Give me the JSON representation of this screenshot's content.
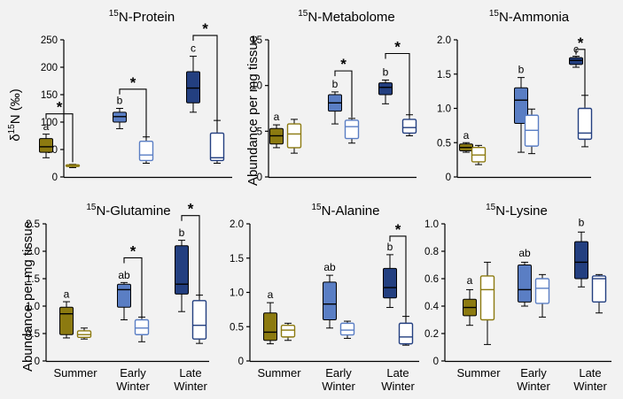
{
  "figure": {
    "ylabel_shared": "Abundance per mg tissue",
    "ylabel_protein_sup": "15",
    "ylabel_protein_text": "δ N (‰)",
    "xcategories": [
      [
        "Summer"
      ],
      [
        "Early",
        "Winter"
      ],
      [
        "Late",
        "Winter"
      ]
    ],
    "colors": {
      "summer": "#8c7a10",
      "early": "#5a7ec4",
      "late": "#233f80"
    }
  },
  "chart_data": [
    {
      "id": "protein",
      "type": "box",
      "title_sup": "15",
      "title": "N-Protein",
      "ylabel": "δ15N (‰)",
      "ylim": [
        0,
        250
      ],
      "ticks": [
        0,
        50,
        100,
        150,
        200,
        250
      ],
      "tick_labels": [
        "0",
        "50",
        "100",
        "150",
        "200",
        "250"
      ],
      "categories": [
        "Summer",
        "Early Winter",
        "Late Winter"
      ],
      "show_xlabels": false,
      "boxes": [
        {
          "group": 0,
          "fill": true,
          "min": 35,
          "q1": 45,
          "median": 55,
          "q3": 70,
          "max": 78
        },
        {
          "group": 0,
          "fill": false,
          "min": 17,
          "q1": 19,
          "median": 20,
          "q3": 22,
          "max": 23
        },
        {
          "group": 1,
          "fill": true,
          "min": 88,
          "q1": 100,
          "median": 110,
          "q3": 118,
          "max": 125
        },
        {
          "group": 1,
          "fill": false,
          "min": 25,
          "q1": 30,
          "median": 40,
          "q3": 65,
          "max": 73
        },
        {
          "group": 2,
          "fill": true,
          "min": 118,
          "q1": 135,
          "median": 162,
          "q3": 192,
          "max": 220
        },
        {
          "group": 2,
          "fill": false,
          "min": 25,
          "q1": 30,
          "median": 35,
          "q3": 80,
          "max": 103
        }
      ],
      "letters": [
        "a",
        "b",
        "c"
      ],
      "letter_values": [
        82,
        130,
        225
      ],
      "stars": [
        {
          "group": 0,
          "y": 115,
          "text": "*"
        },
        {
          "group": 1,
          "y": 160,
          "text": "*"
        },
        {
          "group": 2,
          "y": 258,
          "text": "*"
        }
      ]
    },
    {
      "id": "metabolome",
      "type": "box",
      "title_sup": "15",
      "title": "N-Metabolome",
      "ylim": [
        0,
        15
      ],
      "ticks": [
        0,
        5,
        10,
        15
      ],
      "tick_labels": [
        "0",
        "5",
        "10",
        "15"
      ],
      "categories": [
        "Summer",
        "Early Winter",
        "Late Winter"
      ],
      "show_xlabels": false,
      "boxes": [
        {
          "group": 0,
          "fill": true,
          "min": 3.2,
          "q1": 3.6,
          "median": 4.5,
          "q3": 5.3,
          "max": 5.7
        },
        {
          "group": 0,
          "fill": false,
          "min": 2.6,
          "q1": 3.2,
          "median": 4.7,
          "q3": 5.8,
          "max": 6.3
        },
        {
          "group": 1,
          "fill": true,
          "min": 5.8,
          "q1": 7.2,
          "median": 8.1,
          "q3": 9.0,
          "max": 9.3
        },
        {
          "group": 1,
          "fill": false,
          "min": 3.7,
          "q1": 4.2,
          "median": 5.5,
          "q3": 6.2,
          "max": 6.4
        },
        {
          "group": 2,
          "fill": true,
          "min": 8.0,
          "q1": 9.0,
          "median": 9.8,
          "q3": 10.3,
          "max": 10.6
        },
        {
          "group": 2,
          "fill": false,
          "min": 4.5,
          "q1": 4.8,
          "median": 5.4,
          "q3": 6.3,
          "max": 6.8
        }
      ],
      "letters": [
        "a",
        "b",
        "b"
      ],
      "letter_values": [
        6.0,
        9.6,
        10.9
      ],
      "stars": [
        {
          "group": 1,
          "y": 11.6,
          "text": "*"
        },
        {
          "group": 2,
          "y": 13.5,
          "text": "*"
        }
      ]
    },
    {
      "id": "ammonia",
      "type": "box",
      "title_sup": "15",
      "title": "N-Ammonia",
      "ylim": [
        0,
        2.0
      ],
      "ticks": [
        0,
        0.5,
        1.0,
        1.5,
        2.0
      ],
      "tick_labels": [
        "0",
        "0.5",
        "1.0",
        "1.5",
        "2.0"
      ],
      "categories": [
        "Summer",
        "Early Winter",
        "Late Winter"
      ],
      "show_xlabels": false,
      "boxes": [
        {
          "group": 0,
          "fill": true,
          "min": 0.36,
          "q1": 0.38,
          "median": 0.43,
          "q3": 0.48,
          "max": 0.5
        },
        {
          "group": 0,
          "fill": false,
          "min": 0.18,
          "q1": 0.22,
          "median": 0.32,
          "q3": 0.43,
          "max": 0.46
        },
        {
          "group": 1,
          "fill": true,
          "min": 0.36,
          "q1": 0.78,
          "median": 1.12,
          "q3": 1.3,
          "max": 1.45
        },
        {
          "group": 1,
          "fill": false,
          "min": 0.34,
          "q1": 0.45,
          "median": 0.68,
          "q3": 0.9,
          "max": 0.99
        },
        {
          "group": 2,
          "fill": true,
          "min": 1.6,
          "q1": 1.64,
          "median": 1.7,
          "q3": 1.74,
          "max": 1.76
        },
        {
          "group": 2,
          "fill": false,
          "min": 0.44,
          "q1": 0.55,
          "median": 0.64,
          "q3": 1.0,
          "max": 1.19
        }
      ],
      "letters": [
        "a",
        "b",
        "c"
      ],
      "letter_values": [
        0.53,
        1.49,
        1.79
      ],
      "stars": [
        {
          "group": 2,
          "y": 1.86,
          "text": "*"
        }
      ]
    },
    {
      "id": "glutamine",
      "type": "box",
      "title_sup": "15",
      "title": "N-Glutamine",
      "ylim": [
        0,
        2.5
      ],
      "ticks": [
        0,
        0.5,
        1.0,
        1.5,
        2.0,
        2.5
      ],
      "tick_labels": [
        "0",
        "0.5",
        "1.0",
        "1.5",
        "2.0",
        "2.5"
      ],
      "categories": [
        "Summer",
        "Early Winter",
        "Late Winter"
      ],
      "show_xlabels": true,
      "boxes": [
        {
          "group": 0,
          "fill": true,
          "min": 0.42,
          "q1": 0.48,
          "median": 0.86,
          "q3": 0.98,
          "max": 1.08
        },
        {
          "group": 0,
          "fill": false,
          "min": 0.4,
          "q1": 0.43,
          "median": 0.48,
          "q3": 0.55,
          "max": 0.6
        },
        {
          "group": 1,
          "fill": true,
          "min": 0.75,
          "q1": 0.98,
          "median": 1.3,
          "q3": 1.4,
          "max": 1.43
        },
        {
          "group": 1,
          "fill": false,
          "min": 0.35,
          "q1": 0.48,
          "median": 0.6,
          "q3": 0.75,
          "max": 0.8
        },
        {
          "group": 2,
          "fill": true,
          "min": 0.9,
          "q1": 1.22,
          "median": 1.4,
          "q3": 2.1,
          "max": 2.2
        },
        {
          "group": 2,
          "fill": false,
          "min": 0.32,
          "q1": 0.4,
          "median": 0.65,
          "q3": 1.1,
          "max": 1.2
        }
      ],
      "letters": [
        "a",
        "ab",
        "b"
      ],
      "letter_values": [
        1.12,
        1.47,
        2.24
      ],
      "stars": [
        {
          "group": 1,
          "y": 1.88,
          "text": "*"
        },
        {
          "group": 2,
          "y": 2.65,
          "text": "*"
        }
      ]
    },
    {
      "id": "alanine",
      "type": "box",
      "title_sup": "15",
      "title": "N-Alanine",
      "ylim": [
        0,
        2.0
      ],
      "ticks": [
        0,
        0.5,
        1.0,
        1.5,
        2.0
      ],
      "tick_labels": [
        "0",
        "0.5",
        "1.0",
        "1.5",
        "2.0"
      ],
      "categories": [
        "Summer",
        "Early Winter",
        "Late Winter"
      ],
      "show_xlabels": true,
      "boxes": [
        {
          "group": 0,
          "fill": true,
          "min": 0.25,
          "q1": 0.3,
          "median": 0.42,
          "q3": 0.7,
          "max": 0.85
        },
        {
          "group": 0,
          "fill": false,
          "min": 0.3,
          "q1": 0.35,
          "median": 0.45,
          "q3": 0.52,
          "max": 0.55
        },
        {
          "group": 1,
          "fill": true,
          "min": 0.48,
          "q1": 0.6,
          "median": 0.83,
          "q3": 1.15,
          "max": 1.25
        },
        {
          "group": 1,
          "fill": false,
          "min": 0.33,
          "q1": 0.38,
          "median": 0.45,
          "q3": 0.55,
          "max": 0.58
        },
        {
          "group": 2,
          "fill": true,
          "min": 0.78,
          "q1": 0.92,
          "median": 1.07,
          "q3": 1.35,
          "max": 1.55
        },
        {
          "group": 2,
          "fill": false,
          "min": 0.23,
          "q1": 0.25,
          "median": 0.35,
          "q3": 0.55,
          "max": 0.65
        }
      ],
      "letters": [
        "a",
        "ab",
        "b"
      ],
      "letter_values": [
        0.89,
        1.29,
        1.59
      ],
      "stars": [
        {
          "group": 2,
          "y": 1.82,
          "text": "*"
        }
      ]
    },
    {
      "id": "lysine",
      "type": "box",
      "title_sup": "15",
      "title": "N-Lysine",
      "ylim": [
        0,
        1.0
      ],
      "ticks": [
        0,
        0.2,
        0.4,
        0.6,
        0.8,
        1.0
      ],
      "tick_labels": [
        "0",
        "0.2",
        "0.4",
        "0.6",
        "0.8",
        "1.0"
      ],
      "categories": [
        "Summer",
        "Early Winter",
        "Late Winter"
      ],
      "show_xlabels": true,
      "boxes": [
        {
          "group": 0,
          "fill": true,
          "min": 0.26,
          "q1": 0.33,
          "median": 0.39,
          "q3": 0.45,
          "max": 0.52
        },
        {
          "group": 0,
          "fill": false,
          "min": 0.12,
          "q1": 0.3,
          "median": 0.52,
          "q3": 0.62,
          "max": 0.72
        },
        {
          "group": 1,
          "fill": true,
          "min": 0.4,
          "q1": 0.43,
          "median": 0.52,
          "q3": 0.7,
          "max": 0.72
        },
        {
          "group": 1,
          "fill": false,
          "min": 0.32,
          "q1": 0.42,
          "median": 0.53,
          "q3": 0.6,
          "max": 0.63
        },
        {
          "group": 2,
          "fill": true,
          "min": 0.54,
          "q1": 0.6,
          "median": 0.72,
          "q3": 0.87,
          "max": 0.94
        },
        {
          "group": 2,
          "fill": false,
          "min": 0.35,
          "q1": 0.43,
          "median": 0.6,
          "q3": 0.62,
          "max": 0.63
        }
      ],
      "letters": [
        "a",
        "ab",
        "b"
      ],
      "letter_values": [
        0.55,
        0.75,
        0.97
      ],
      "stars": []
    }
  ]
}
